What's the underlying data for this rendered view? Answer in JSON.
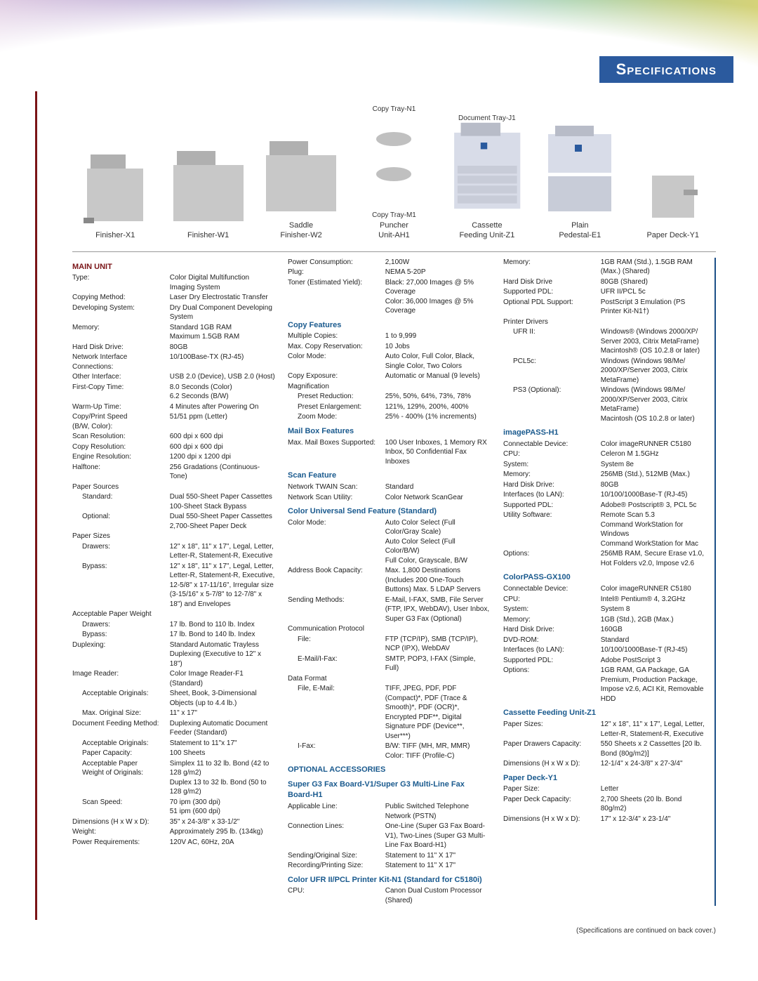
{
  "page": {
    "title": "Specifications",
    "footnote": "(Specifications are continued on back cover.)",
    "colors": {
      "accent_red": "#7a1417",
      "accent_blue": "#1a5a8e",
      "title_bg": "#2b5a9e",
      "border_blue": "#1c4f87"
    }
  },
  "accessories": [
    {
      "label": "Finisher-X1",
      "sublabels": []
    },
    {
      "label": "Finisher-W1",
      "sublabels": []
    },
    {
      "label": "Saddle\nFinisher-W2",
      "sublabels": []
    },
    {
      "label": "Puncher\nUnit-AH1",
      "sublabels": [
        "Copy Tray-N1",
        "Copy Tray-M1"
      ]
    },
    {
      "label": "Cassette\nFeeding Unit-Z1",
      "sublabels": [
        "Document Tray-J1"
      ]
    },
    {
      "label": "Plain\nPedestal-E1",
      "sublabels": []
    },
    {
      "label": "Paper Deck-Y1",
      "sublabels": []
    }
  ],
  "col1": {
    "heading": "MAIN UNIT",
    "rows": [
      {
        "l": "Type:",
        "v": "Color Digital Multifunction Imaging System"
      },
      {
        "l": "Copying Method:",
        "v": "Laser Dry Electrostatic Transfer"
      },
      {
        "l": "Developing System:",
        "v": "Dry Dual Component Developing System"
      },
      {
        "l": "Memory:",
        "v": "Standard 1GB RAM\nMaximum 1.5GB RAM"
      },
      {
        "l": "Hard Disk Drive:",
        "v": "80GB"
      },
      {
        "l": "Network Interface\nConnections:",
        "v": "10/100Base-TX (RJ-45)"
      },
      {
        "l": "Other Interface:",
        "v": "USB 2.0 (Device), USB 2.0 (Host)"
      },
      {
        "l": "First-Copy Time:",
        "v": "8.0 Seconds (Color)\n6.2 Seconds (B/W)"
      },
      {
        "l": "Warm-Up Time:",
        "v": "4 Minutes after Powering On"
      },
      {
        "l": "Copy/Print Speed\n(B/W, Color):",
        "v": "51/51 ppm (Letter)"
      },
      {
        "l": "Scan Resolution:",
        "v": "600 dpi x 600 dpi"
      },
      {
        "l": "Copy Resolution:",
        "v": "600 dpi x 600 dpi"
      },
      {
        "l": "Engine Resolution:",
        "v": "1200 dpi x 1200 dpi"
      },
      {
        "l": "Halftone:",
        "v": "256 Gradations (Continuous-Tone)"
      },
      {
        "l": "Paper Sources",
        "v": ""
      },
      {
        "l": "Standard:",
        "v": "Dual 550-Sheet Paper Cassettes\n100-Sheet Stack Bypass",
        "indent": true
      },
      {
        "l": "Optional:",
        "v": "Dual 550-Sheet Paper Cassettes\n2,700-Sheet Paper Deck",
        "indent": true
      },
      {
        "l": "Paper Sizes",
        "v": ""
      },
      {
        "l": "Drawers:",
        "v": "12\" x 18\", 11\" x 17\", Legal, Letter, Letter-R, Statement-R, Executive",
        "indent": true
      },
      {
        "l": "Bypass:",
        "v": "12\" x 18\", 11\" x 17\", Legal, Letter, Letter-R, Statement-R, Executive, 12-5/8\" x 17-11/16\", Irregular size (3-15/16\" x 5-7/8\" to 12-7/8\" x 18\") and Envelopes",
        "indent": true
      },
      {
        "l": "Acceptable Paper Weight",
        "v": ""
      },
      {
        "l": "Drawers:",
        "v": "17 lb. Bond to 110 lb. Index",
        "indent": true
      },
      {
        "l": "Bypass:",
        "v": "17 lb. Bond to 140 lb. Index",
        "indent": true
      },
      {
        "l": "Duplexing:",
        "v": "Standard Automatic Trayless Duplexing (Executive to 12\" x 18\")"
      },
      {
        "l": "Image Reader:",
        "v": "Color Image Reader-F1 (Standard)"
      },
      {
        "l": "Acceptable Originals:",
        "v": "Sheet, Book, 3-Dimensional Objects (up to 4.4 lb.)",
        "indent": true
      },
      {
        "l": "Max. Original Size:",
        "v": "11\" x 17\"",
        "indent": true
      },
      {
        "l": "Document Feeding Method:",
        "v": "Duplexing Automatic Document Feeder (Standard)"
      },
      {
        "l": "Acceptable Originals:",
        "v": "Statement to 11\"x 17\"",
        "indent": true
      },
      {
        "l": "Paper Capacity:",
        "v": "100 Sheets",
        "indent": true
      },
      {
        "l": "Acceptable Paper\nWeight of Originals:",
        "v": "Simplex 11 to 32 lb. Bond (42 to 128 g/m2)\nDuplex 13 to 32 lb. Bond (50 to 128 g/m2)",
        "indent": true
      },
      {
        "l": "Scan Speed:",
        "v": "70 ipm (300 dpi)\n51 ipm (600 dpi)",
        "indent": true
      },
      {
        "l": "Dimensions (H x W x D):",
        "v": "35\" x 24-3/8\" x 33-1/2\""
      },
      {
        "l": "Weight:",
        "v": "Approximately 295 lb. (134kg)"
      },
      {
        "l": "Power Requirements:",
        "v": "120V AC, 60Hz, 20A"
      }
    ]
  },
  "col2": {
    "groups": [
      {
        "heading": "",
        "rows": [
          {
            "l": "Power Consumption:",
            "v": "2,100W"
          },
          {
            "l": "Plug:",
            "v": "NEMA 5-20P"
          },
          {
            "l": "Toner (Estimated Yield):",
            "v": "Black: 27,000 Images @ 5% Coverage\nColor: 36,000 Images @ 5% Coverage"
          }
        ]
      },
      {
        "heading": "Copy Features",
        "rows": [
          {
            "l": "Multiple Copies:",
            "v": "1 to 9,999"
          },
          {
            "l": "Max. Copy Reservation:",
            "v": "10 Jobs"
          },
          {
            "l": "Color Mode:",
            "v": "Auto Color, Full Color, Black, Single Color, Two Colors"
          },
          {
            "l": "Copy Exposure:",
            "v": "Automatic or Manual (9 levels)"
          },
          {
            "l": "Magnification",
            "v": ""
          },
          {
            "l": "Preset Reduction:",
            "v": "25%, 50%, 64%, 73%, 78%",
            "indent": true
          },
          {
            "l": "Preset Enlargement:",
            "v": "121%, 129%, 200%, 400%",
            "indent": true
          },
          {
            "l": "Zoom Mode:",
            "v": "25% - 400% (1% increments)",
            "indent": true
          }
        ]
      },
      {
        "heading": "Mail Box Features",
        "rows": [
          {
            "l": "Max. Mail Boxes Supported:",
            "v": "100 User Inboxes, 1 Memory RX Inbox, 50 Confidential Fax Inboxes"
          }
        ]
      },
      {
        "heading": "Scan Feature",
        "rows": [
          {
            "l": "Network TWAIN Scan:",
            "v": "Standard"
          },
          {
            "l": "Network Scan Utility:",
            "v": "Color Network ScanGear"
          }
        ]
      },
      {
        "heading": "Color Universal Send Feature (Standard)",
        "rows": [
          {
            "l": "Color Mode:",
            "v": "Auto Color Select (Full Color/Gray Scale)\nAuto Color Select (Full Color/B/W)\nFull Color, Grayscale, B/W"
          },
          {
            "l": "Address Book Capacity:",
            "v": "Max. 1,800 Destinations (Includes 200 One-Touch Buttons) Max. 5 LDAP Servers"
          },
          {
            "l": "Sending Methods:",
            "v": "E-Mail, I-FAX, SMB, File Server (FTP, IPX, WebDAV), User Inbox, Super G3 Fax (Optional)"
          },
          {
            "l": "Communication Protocol",
            "v": ""
          },
          {
            "l": "File:",
            "v": "FTP (TCP/IP), SMB (TCP/IP), NCP (IPX), WebDAV",
            "indent": true
          },
          {
            "l": "E-Mail/I-Fax:",
            "v": "SMTP, POP3, I-FAX (Simple, Full)",
            "indent": true
          },
          {
            "l": "Data Format",
            "v": ""
          },
          {
            "l": "File, E-Mail:",
            "v": "TIFF, JPEG, PDF, PDF (Compact)*, PDF (Trace & Smooth)*, PDF (OCR)*, Encrypted PDF**, Digital Signature PDF (Device**, User***)",
            "indent": true
          },
          {
            "l": "I-Fax:",
            "v": "B/W: TIFF (MH, MR, MMR)\nColor: TIFF (Profile-C)",
            "indent": true
          }
        ]
      },
      {
        "heading": "OPTIONAL ACCESSORIES",
        "rows": []
      },
      {
        "heading": "Super G3 Fax Board-V1/Super G3 Multi-Line Fax Board-H1",
        "rows": [
          {
            "l": "Applicable Line:",
            "v": "Public Switched Telephone Network (PSTN)"
          },
          {
            "l": "Connection Lines:",
            "v": "One-Line (Super G3 Fax Board-V1), Two-Lines (Super G3 Multi-Line Fax Board-H1)"
          },
          {
            "l": "Sending/Original Size:",
            "v": "Statement to 11\" X 17\""
          },
          {
            "l": "Recording/Printing Size:",
            "v": "Statement to 11\" X 17\""
          }
        ]
      },
      {
        "heading": "Color UFR II/PCL Printer Kit-N1 (Standard for C5180i)",
        "rows": [
          {
            "l": "CPU:",
            "v": "Canon Dual Custom Processor (Shared)"
          }
        ]
      }
    ]
  },
  "col3": {
    "groups": [
      {
        "heading": "",
        "rows": [
          {
            "l": "Memory:",
            "v": "1GB RAM (Std.), 1.5GB RAM (Max.) (Shared)"
          },
          {
            "l": "Hard Disk Drive",
            "v": "80GB (Shared)"
          },
          {
            "l": "Supported PDL:",
            "v": "UFR II/PCL 5c"
          },
          {
            "l": "Optional PDL Support:",
            "v": "PostScript 3 Emulation (PS Printer Kit-N1†)"
          },
          {
            "l": "Printer Drivers",
            "v": ""
          },
          {
            "l": "UFR II:",
            "v": "Windows® (Windows 2000/XP/ Server 2003, Citrix MetaFrame) Macintosh® (OS 10.2.8 or later)",
            "indent": true
          },
          {
            "l": "PCL5c:",
            "v": "Windows (Windows 98/Me/ 2000/XP/Server 2003, Citrix MetaFrame)",
            "indent": true
          },
          {
            "l": "PS3 (Optional):",
            "v": "Windows (Windows 98/Me/ 2000/XP/Server 2003, Citrix MetaFrame)\nMacintosh (OS 10.2.8 or later)",
            "indent": true
          }
        ]
      },
      {
        "heading": "imagePASS-H1",
        "rows": [
          {
            "l": "Connectable Device:",
            "v": "Color imageRUNNER C5180"
          },
          {
            "l": "CPU:",
            "v": "Celeron M 1.5GHz"
          },
          {
            "l": "System:",
            "v": "System 8e"
          },
          {
            "l": "Memory:",
            "v": "256MB (Std.), 512MB (Max.)"
          },
          {
            "l": "Hard Disk Drive:",
            "v": "80GB"
          },
          {
            "l": "Interfaces (to LAN):",
            "v": "10/100/1000Base-T (RJ-45)"
          },
          {
            "l": "Supported PDL:",
            "v": "Adobe® Postscript® 3, PCL 5c"
          },
          {
            "l": "Utility Software:",
            "v": "Remote Scan 5.3\nCommand WorkStation for Windows\nCommand WorkStation for Mac"
          },
          {
            "l": "Options:",
            "v": "256MB RAM, Secure Erase v1.0, Hot Folders v2.0, Impose v2.6"
          }
        ]
      },
      {
        "heading": "ColorPASS-GX100",
        "rows": [
          {
            "l": "Connectable Device:",
            "v": "Color imageRUNNER C5180"
          },
          {
            "l": "CPU:",
            "v": "Intel® Pentium® 4, 3.2GHz"
          },
          {
            "l": "System:",
            "v": "System 8"
          },
          {
            "l": "Memory:",
            "v": "1GB (Std.), 2GB (Max.)"
          },
          {
            "l": "Hard Disk Drive:",
            "v": "160GB"
          },
          {
            "l": "DVD-ROM:",
            "v": "Standard"
          },
          {
            "l": "Interfaces (to LAN):",
            "v": "10/100/1000Base-T (RJ-45)"
          },
          {
            "l": "Supported PDL:",
            "v": "Adobe PostScript 3"
          },
          {
            "l": "Options:",
            "v": "1GB RAM, GA Package, GA Premium, Production Package, Impose v2.6, ACI Kit, Removable HDD"
          }
        ]
      },
      {
        "heading": "Cassette Feeding Unit-Z1",
        "rows": [
          {
            "l": "Paper Sizes:",
            "v": "12\" x 18\", 11\" x 17\", Legal, Letter, Letter-R, Statement-R, Executive"
          },
          {
            "l": "Paper Drawers Capacity:",
            "v": "550 Sheets x 2 Cassettes [20 lb. Bond (80g/m2)]"
          },
          {
            "l": "Dimensions (H x W x D):",
            "v": "12-1/4\" x 24-3/8\" x 27-3/4\""
          }
        ]
      },
      {
        "heading": "Paper Deck-Y1",
        "rows": [
          {
            "l": "Paper Size:",
            "v": "Letter"
          },
          {
            "l": "Paper Deck Capacity:",
            "v": "2,700 Sheets (20 lb. Bond 80g/m2)"
          },
          {
            "l": "Dimensions (H x W x D):",
            "v": "17\" x 12-3/4\" x 23-1/4\""
          }
        ]
      }
    ]
  }
}
